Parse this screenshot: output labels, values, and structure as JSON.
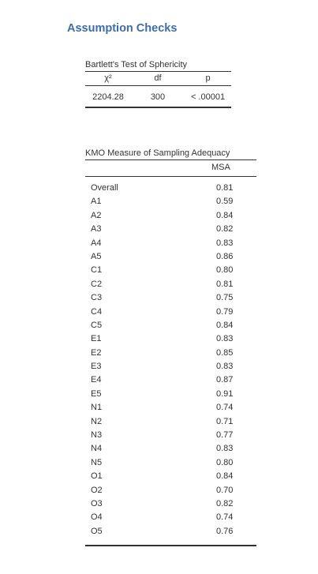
{
  "heading": "Assumption Checks",
  "bartlett": {
    "caption": "Bartlett's Test of Sphericity",
    "headers": {
      "chi": "χ²",
      "df": "df",
      "p": "p"
    },
    "row": {
      "chi": "2204.28",
      "df": "300",
      "p": "< .00001"
    }
  },
  "kmo": {
    "caption": "KMO Measure of Sampling Adequacy",
    "headers": {
      "name": "",
      "msa": "MSA"
    },
    "rows": [
      {
        "name": "Overall",
        "msa": "0.81"
      },
      {
        "name": "A1",
        "msa": "0.59"
      },
      {
        "name": "A2",
        "msa": "0.84"
      },
      {
        "name": "A3",
        "msa": "0.82"
      },
      {
        "name": "A4",
        "msa": "0.83"
      },
      {
        "name": "A5",
        "msa": "0.86"
      },
      {
        "name": "C1",
        "msa": "0.80"
      },
      {
        "name": "C2",
        "msa": "0.81"
      },
      {
        "name": "C3",
        "msa": "0.75"
      },
      {
        "name": "C4",
        "msa": "0.79"
      },
      {
        "name": "C5",
        "msa": "0.84"
      },
      {
        "name": "E1",
        "msa": "0.83"
      },
      {
        "name": "E2",
        "msa": "0.85"
      },
      {
        "name": "E3",
        "msa": "0.83"
      },
      {
        "name": "E4",
        "msa": "0.87"
      },
      {
        "name": "E5",
        "msa": "0.91"
      },
      {
        "name": "N1",
        "msa": "0.74"
      },
      {
        "name": "N2",
        "msa": "0.71"
      },
      {
        "name": "N3",
        "msa": "0.77"
      },
      {
        "name": "N4",
        "msa": "0.83"
      },
      {
        "name": "N5",
        "msa": "0.80"
      },
      {
        "name": "O1",
        "msa": "0.84"
      },
      {
        "name": "O2",
        "msa": "0.70"
      },
      {
        "name": "O3",
        "msa": "0.82"
      },
      {
        "name": "O4",
        "msa": "0.74"
      },
      {
        "name": "O5",
        "msa": "0.76"
      }
    ]
  },
  "colors": {
    "heading": "#3e6da9",
    "text": "#333333",
    "rule": "#333333"
  }
}
